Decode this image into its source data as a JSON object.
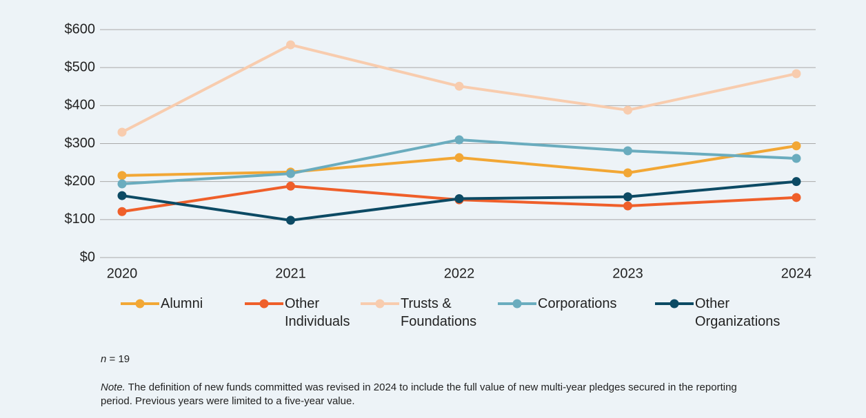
{
  "chart_data": {
    "type": "line",
    "x": [
      "2020",
      "2021",
      "2022",
      "2023",
      "2024"
    ],
    "series": [
      {
        "name": "Alumni",
        "color": "#f2a735",
        "values": [
          216,
          225,
          263,
          223,
          294
        ]
      },
      {
        "name": "Other Individuals",
        "color": "#ef5f2a",
        "values": [
          121,
          188,
          152,
          136,
          158
        ]
      },
      {
        "name": "Trusts & Foundations",
        "color": "#f8ccae",
        "values": [
          330,
          560,
          451,
          388,
          484
        ]
      },
      {
        "name": "Corporations",
        "color": "#6aacbe",
        "values": [
          194,
          221,
          310,
          281,
          261
        ]
      },
      {
        "name": "Other Organizations",
        "color": "#0c4a64",
        "values": [
          163,
          98,
          155,
          160,
          200
        ]
      }
    ],
    "ylim": [
      0,
      600
    ],
    "yticks": [
      {
        "value": 0,
        "label": "$0"
      },
      {
        "value": 100,
        "label": "$100"
      },
      {
        "value": 200,
        "label": "$200"
      },
      {
        "value": 300,
        "label": "$300"
      },
      {
        "value": 400,
        "label": "$400"
      },
      {
        "value": 500,
        "label": "$500"
      },
      {
        "value": 600,
        "label": "$600"
      }
    ],
    "grid": true,
    "legend": "bottom",
    "sample_symbol": "n",
    "sample_value": "= 19",
    "note_label": "Note.",
    "note_text": "The definition of new funds committed was revised in 2024 to include the full value of new multi-year pledges secured in the reporting period. Previous years were limited to a five-year value."
  }
}
